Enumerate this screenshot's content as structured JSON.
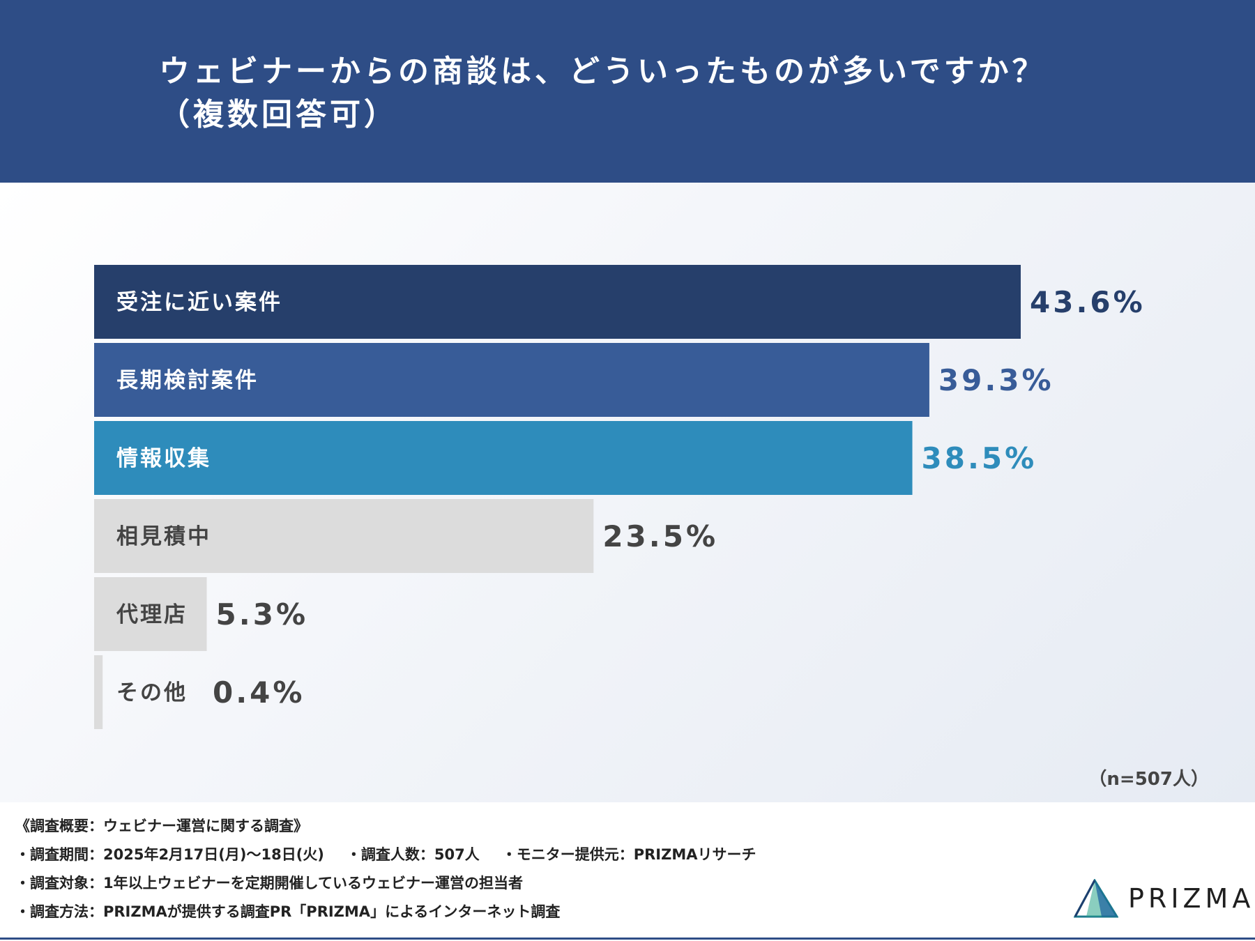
{
  "header": {
    "title_line1": "ウェビナーからの商談は、どういったものが多いですか？",
    "title_line2": "（複数回答可）"
  },
  "colors": {
    "header_bg": "#2e4d86",
    "bar_dark": "#263f6b",
    "bar_mid": "#385c98",
    "bar_light": "#2e8cbb",
    "bar_gray": "#dcdcdc",
    "text_gray": "#444444"
  },
  "chart_data": {
    "type": "bar",
    "orientation": "horizontal",
    "title": "ウェビナーからの商談は、どういったものが多いですか？（複数回答可）",
    "categories": [
      "受注に近い案件",
      "長期検討案件",
      "情報収集",
      "相見積中",
      "代理店",
      "その他"
    ],
    "values": [
      43.6,
      39.3,
      38.5,
      23.5,
      5.3,
      0.4
    ],
    "value_labels": [
      "43.6%",
      "39.3%",
      "38.5%",
      "23.5%",
      "5.3%",
      "0.4%"
    ],
    "unit": "%",
    "xlim": [
      0,
      43.6
    ],
    "grid": false
  },
  "sample_size": "（n=507人）",
  "footer": {
    "overview": "《調査概要：ウェビナー運営に関する調査》",
    "period": "・調査期間：2025年2月17日(月)〜18日(火)",
    "respondents": "・調査人数：507人",
    "provider": "・モニター提供元：PRIZMAリサーチ",
    "target": "・調査対象：1年以上ウェビナーを定期開催しているウェビナー運営の担当者",
    "method": "・調査方法：PRIZMAが提供する調査PR「PRIZMA」によるインターネット調査",
    "logo_text": "PRIZMA"
  }
}
